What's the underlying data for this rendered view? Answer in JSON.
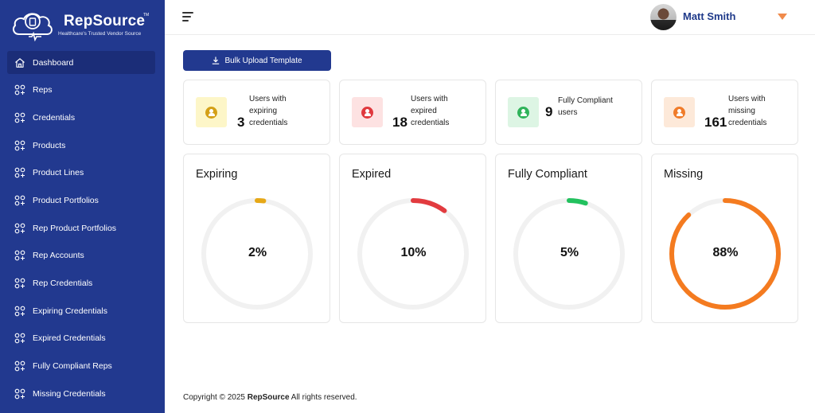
{
  "brand": {
    "name": "RepSource",
    "tm": "TM",
    "tagline": "Healthcare's Trusted Vendor Source"
  },
  "sidebar": {
    "items": [
      {
        "label": "Dashboard",
        "icon": "home-icon",
        "active": true
      },
      {
        "label": "Reps",
        "icon": "grid-plus-icon"
      },
      {
        "label": "Credentials",
        "icon": "grid-plus-icon"
      },
      {
        "label": "Products",
        "icon": "grid-plus-icon"
      },
      {
        "label": "Product Lines",
        "icon": "grid-plus-icon"
      },
      {
        "label": "Product Portfolios",
        "icon": "grid-plus-icon"
      },
      {
        "label": "Rep Product Portfolios",
        "icon": "grid-plus-icon"
      },
      {
        "label": "Rep Accounts",
        "icon": "grid-plus-icon"
      },
      {
        "label": "Rep Credentials",
        "icon": "grid-plus-icon"
      },
      {
        "label": "Expiring Credentials",
        "icon": "grid-plus-icon"
      },
      {
        "label": "Expired Credentials",
        "icon": "grid-plus-icon"
      },
      {
        "label": "Fully Compliant Reps",
        "icon": "grid-plus-icon"
      },
      {
        "label": "Missing Credentials",
        "icon": "grid-plus-icon"
      }
    ]
  },
  "header": {
    "user_name": "Matt Smith"
  },
  "toolbar": {
    "upload_label": "Bulk Upload Template"
  },
  "stats": [
    {
      "num": "3",
      "text": "Users with\nexpiring\ncredentials",
      "color": "#d4a017",
      "bg": "#fdf6c8"
    },
    {
      "num": "18",
      "text": "Users with\nexpired\ncredentials",
      "color": "#e0393e",
      "bg": "#fde2e2"
    },
    {
      "num": "9",
      "text": "Fully Compliant\nusers",
      "color": "#2fb35a",
      "bg": "#ddf5e4"
    },
    {
      "num": "161",
      "text": "Users with\nmissing\ncredentials",
      "color": "#f07c2a",
      "bg": "#fde9d9"
    }
  ],
  "donuts": [
    {
      "title": "Expiring",
      "percent_label": "2%",
      "percent": 2,
      "color": "#e6a817"
    },
    {
      "title": "Expired",
      "percent_label": "10%",
      "percent": 10,
      "color": "#e23b3f"
    },
    {
      "title": "Fully Compliant",
      "percent_label": "5%",
      "percent": 5,
      "color": "#22c15e"
    },
    {
      "title": "Missing",
      "percent_label": "88%",
      "percent": 88,
      "color": "#f47b20"
    }
  ],
  "footer": {
    "prefix": "Copyright © 2025 ",
    "brand": "RepSource",
    "suffix": " All rights reserved."
  }
}
